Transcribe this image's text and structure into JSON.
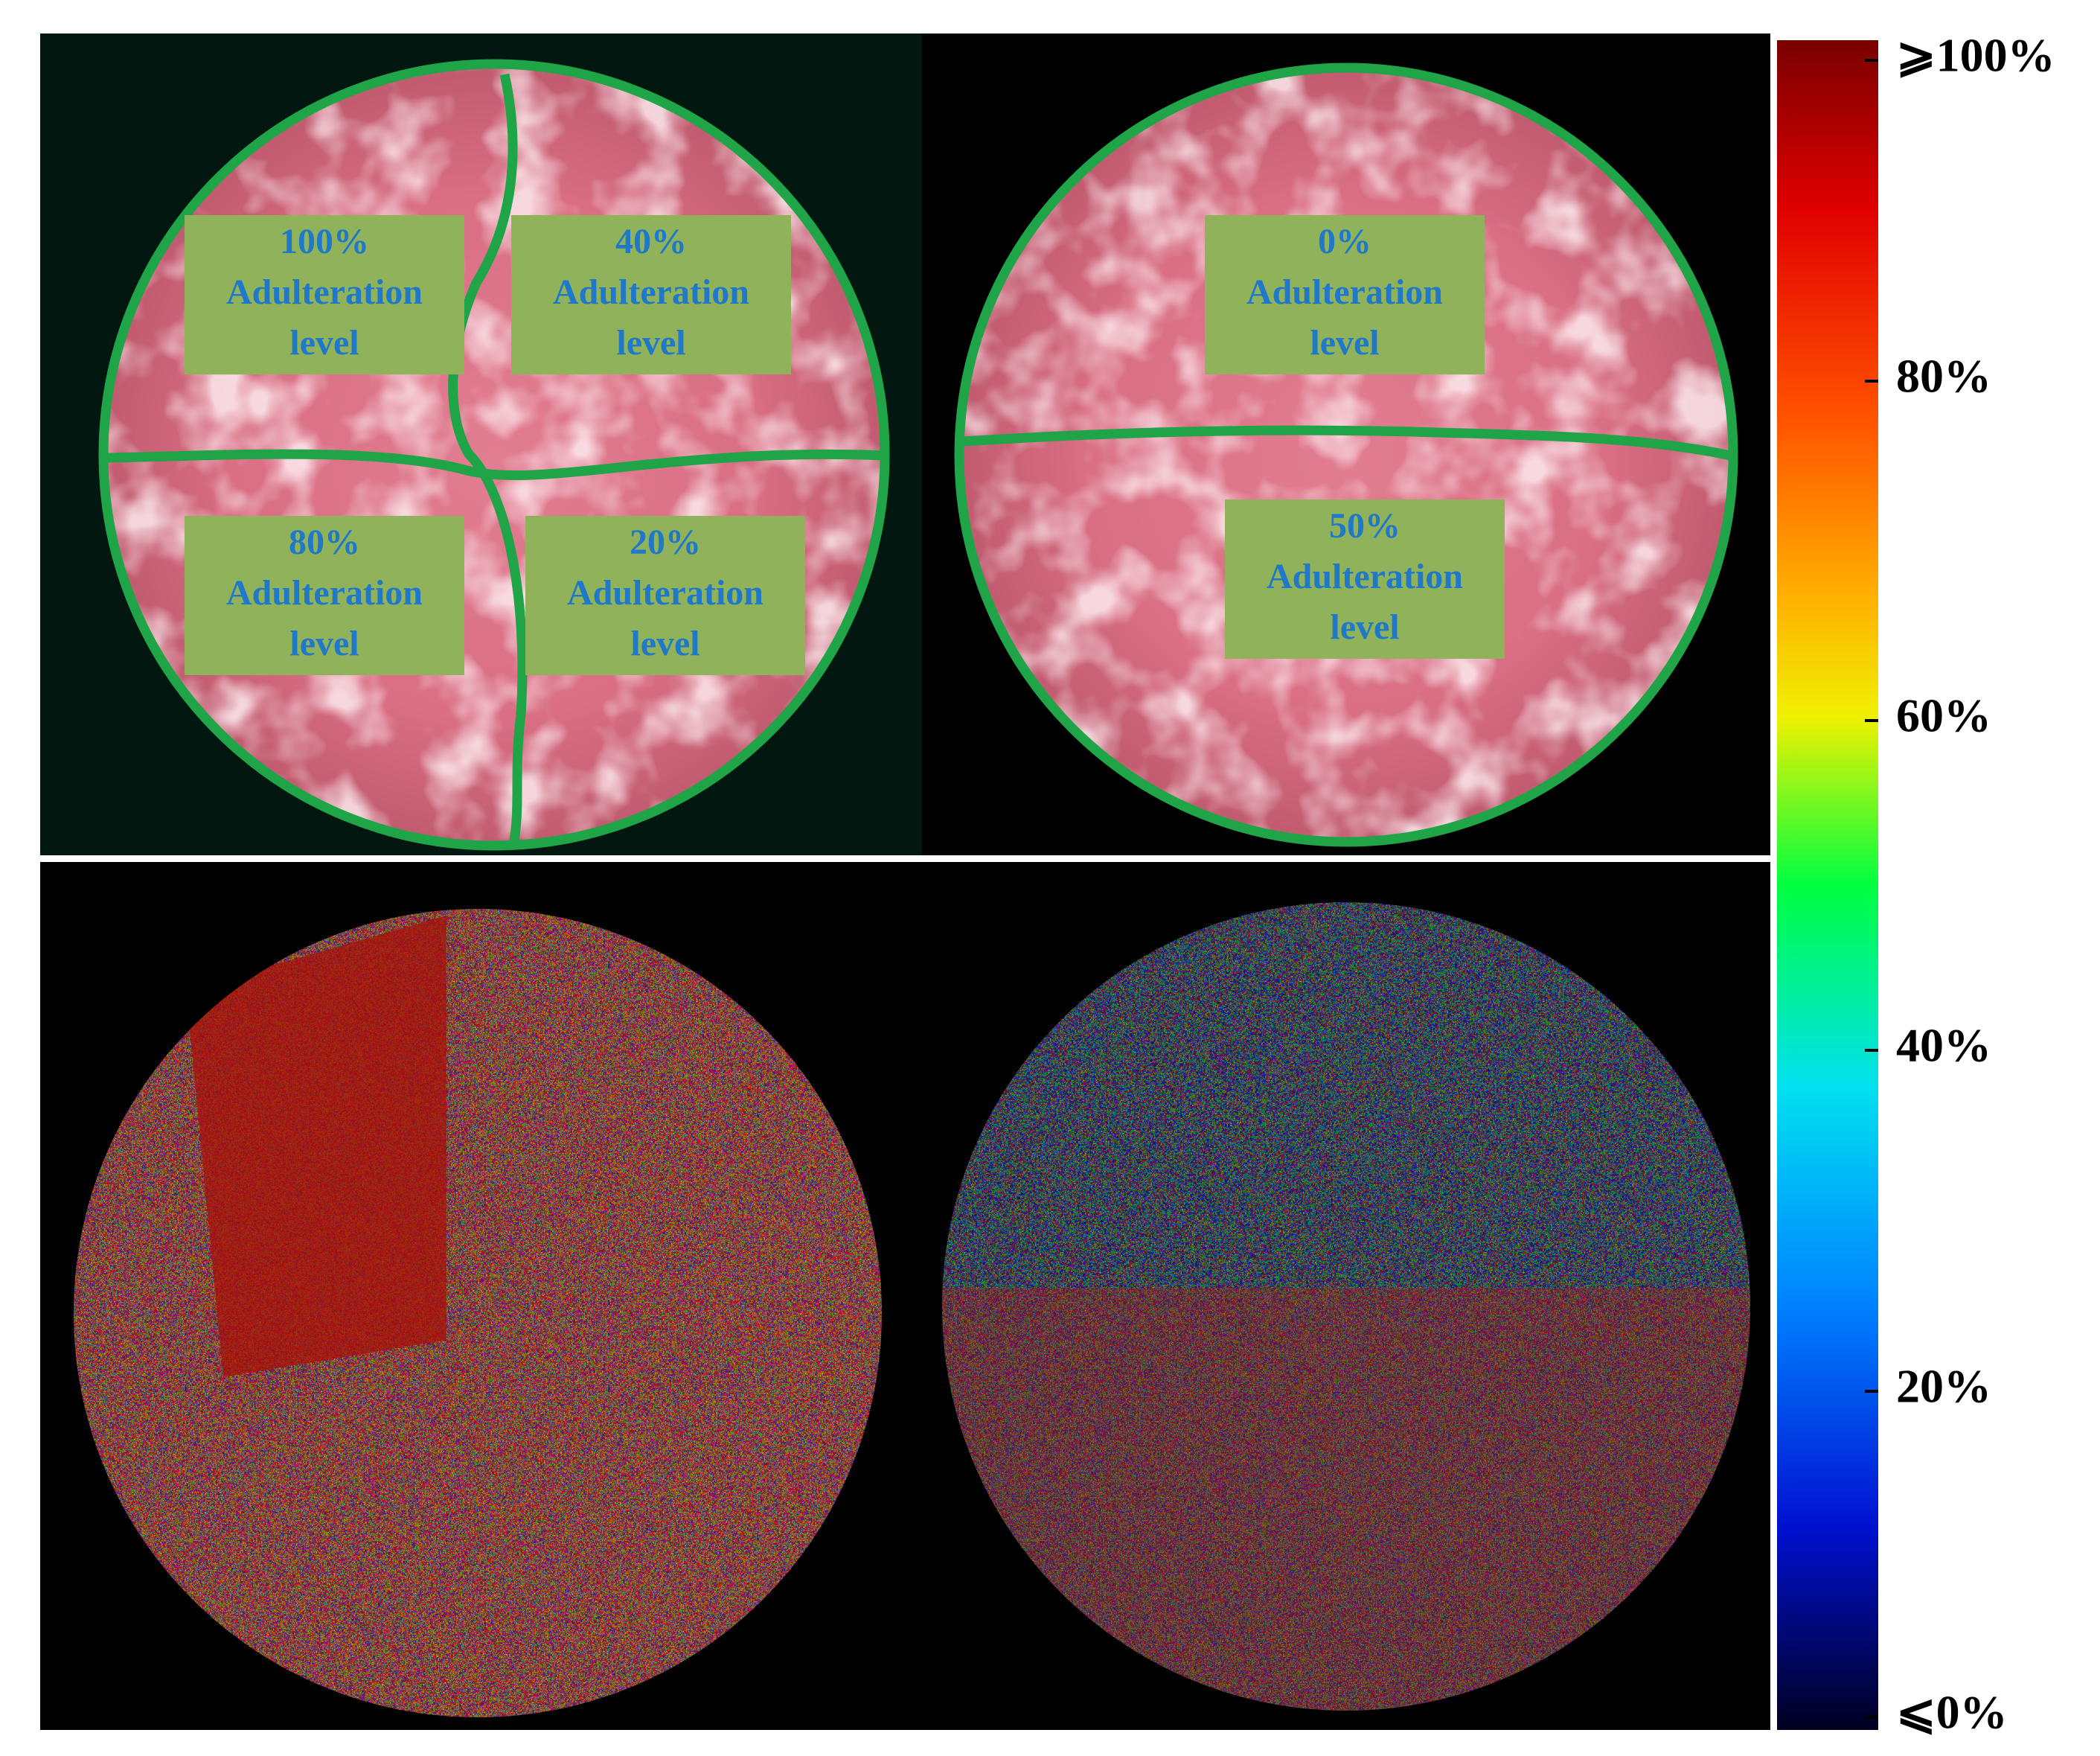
{
  "panels": [
    {
      "labels": [
        {
          "lines": [
            "100%",
            "Adulteration",
            "level"
          ]
        },
        {
          "lines": [
            "40%",
            "Adulteration",
            "level"
          ]
        },
        {
          "lines": [
            "80%",
            "Adulteration",
            "level"
          ]
        },
        {
          "lines": [
            "20%",
            "Adulteration",
            "level"
          ]
        }
      ]
    },
    {
      "labels": [
        {
          "lines": [
            "0%",
            "Adulteration",
            "level"
          ]
        },
        {
          "lines": [
            "50%",
            "Adulteration",
            "level"
          ]
        }
      ]
    }
  ],
  "colorbar": {
    "ticks": [
      "⩾100%",
      "80%",
      "60%",
      "40%",
      "20%",
      "⩽0%"
    ]
  }
}
